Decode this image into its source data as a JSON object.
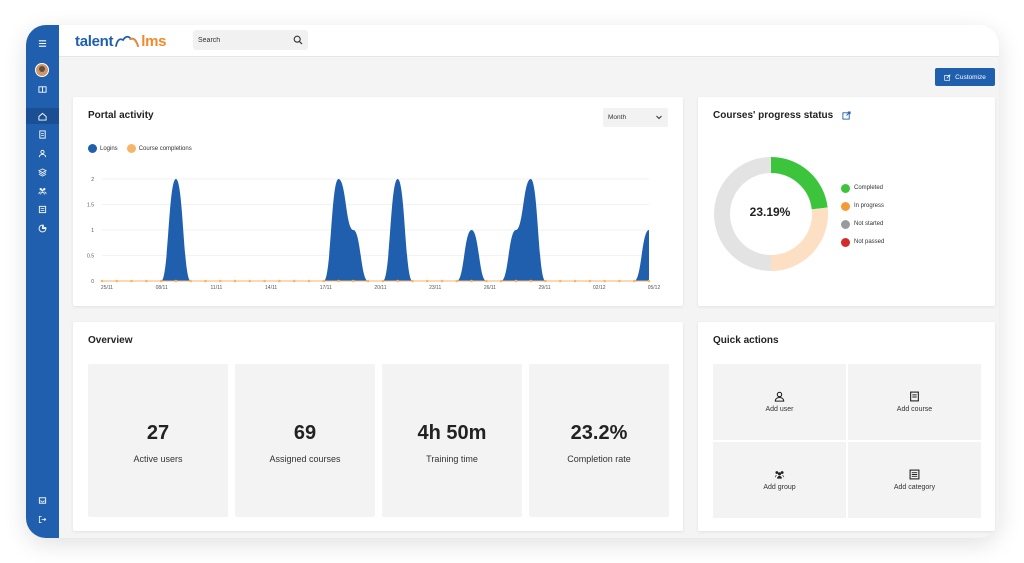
{
  "app": {
    "logo_left": "talent",
    "logo_right": "lms"
  },
  "search": {
    "placeholder": "Search"
  },
  "toolbar": {
    "customize_label": "Customize"
  },
  "sidebar": {
    "top_icons": [
      "menu-icon",
      "avatar",
      "book-icon"
    ],
    "nav_icons": [
      "home-icon",
      "courses-icon",
      "user-icon",
      "layers-icon",
      "groups-icon",
      "catalog-icon",
      "reports-icon"
    ],
    "bottom_icons": [
      "inbox-icon",
      "logout-icon"
    ],
    "active": "home-icon"
  },
  "portal_activity": {
    "title": "Portal activity",
    "period_select": "Month",
    "legend": [
      {
        "label": "Logins",
        "color": "#1f5fae"
      },
      {
        "label": "Course completions",
        "color": "#f6b56b"
      }
    ]
  },
  "chart_data": {
    "type": "area",
    "ylim": [
      0,
      2
    ],
    "yticks": [
      "0",
      "0.5",
      "1",
      "1.5",
      "2"
    ],
    "xticks": [
      "25/11",
      "08/11",
      "11/11",
      "14/11",
      "17/11",
      "20/11",
      "23/11",
      "26/11",
      "29/11",
      "02/12",
      "05/12"
    ],
    "series": [
      {
        "name": "Logins",
        "color": "#1f5fae",
        "values": [
          0,
          0,
          0,
          0,
          0,
          2,
          0,
          0,
          0,
          0,
          0,
          0,
          0,
          0,
          0,
          0,
          2,
          1,
          0,
          0,
          2,
          0,
          0,
          0,
          0,
          1,
          0,
          0,
          1,
          2,
          0,
          0,
          0,
          0,
          0,
          0,
          0,
          1
        ]
      },
      {
        "name": "Course completions",
        "color": "#f6b56b",
        "values": [
          0,
          0,
          0,
          0,
          0,
          0,
          0,
          0,
          0,
          0,
          0,
          0,
          0,
          0,
          0,
          0,
          0,
          0,
          0,
          0,
          0,
          0,
          0,
          0,
          0,
          0,
          0,
          0,
          0,
          0,
          0,
          0,
          0,
          0,
          0,
          0,
          0,
          0
        ]
      }
    ]
  },
  "progress": {
    "title": "Courses' progress status",
    "center_value": "23.19%",
    "legend": [
      {
        "label": "Completed",
        "color": "#3cc43c"
      },
      {
        "label": "In progress",
        "color": "#f59b36"
      },
      {
        "label": "Not started",
        "color": "#9b9b9b"
      },
      {
        "label": "Not passed",
        "color": "#d42a2a"
      }
    ],
    "segments": [
      {
        "name": "Completed",
        "fraction": 0.2319,
        "color": "#3cc43c"
      },
      {
        "name": "In progress",
        "fraction": 0.2681,
        "color": "#fde0c3"
      },
      {
        "name": "Not started",
        "fraction": 0.5,
        "color": "#e3e3e3"
      }
    ]
  },
  "overview": {
    "title": "Overview",
    "stats": [
      {
        "value": "27",
        "label": "Active users"
      },
      {
        "value": "69",
        "label": "Assigned courses"
      },
      {
        "value": "4h 50m",
        "label": "Training time"
      },
      {
        "value": "23.2%",
        "label": "Completion rate"
      }
    ]
  },
  "quick_actions": {
    "title": "Quick actions",
    "items": [
      {
        "label": "Add user",
        "icon": "user-icon"
      },
      {
        "label": "Add course",
        "icon": "course-icon"
      },
      {
        "label": "Add group",
        "icon": "group-icon"
      },
      {
        "label": "Add category",
        "icon": "category-icon"
      }
    ]
  }
}
